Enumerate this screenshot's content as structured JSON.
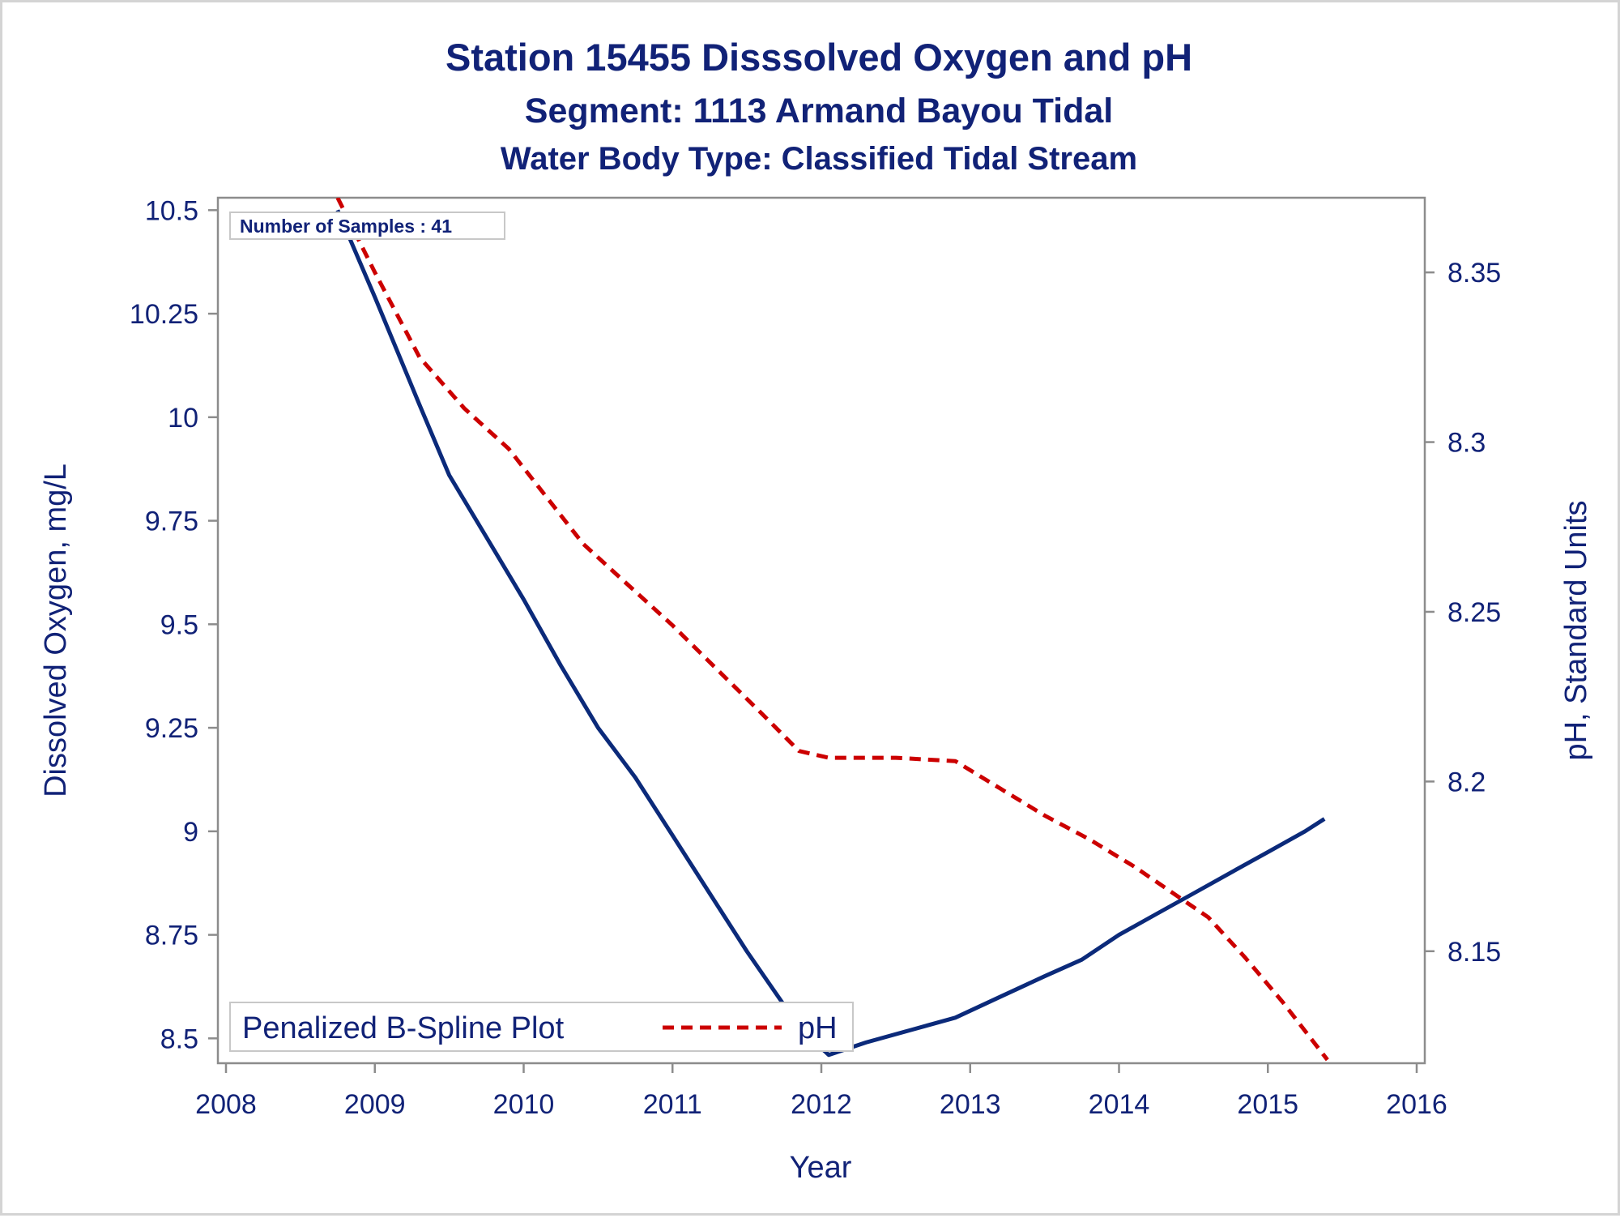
{
  "titles": {
    "main": "Station 15455   Disssolved Oxygen and pH",
    "segment": "Segment: 1113  Armand Bayou Tidal",
    "water_body": "Water Body Type: Classified Tidal Stream"
  },
  "inset_label": "Number of Samples : 41",
  "legend": {
    "left_label": "Penalized B-Spline Plot",
    "right_label": "pH"
  },
  "colors": {
    "text": "#112277",
    "do_line": "#0b2a7a",
    "ph_line": "#cc0000",
    "axis": "#8c8c8c"
  },
  "chart_data": {
    "type": "line",
    "xlabel": "Year",
    "ylabel_left": "Dissolved Oxygen, mg/L",
    "ylabel_right": "pH, Standard Units",
    "x_ticks": [
      2008,
      2009,
      2010,
      2011,
      2012,
      2013,
      2014,
      2015,
      2016
    ],
    "y_left_ticks": [
      "10.5",
      "10.25",
      "10",
      "9.75",
      "9.5",
      "9.25",
      "9",
      "8.75",
      "8.5"
    ],
    "y_right_ticks": [
      "8.35",
      "8.3",
      "8.25",
      "8.2",
      "8.15"
    ],
    "xlim": [
      2008,
      2016
    ],
    "ylim_left": [
      8.44,
      10.53
    ],
    "ylim_right": [
      8.117,
      8.372
    ],
    "grid": false,
    "legend_position": "bottom-left inside",
    "series": [
      {
        "name": "Dissolved Oxygen",
        "axis": "left",
        "style": "solid",
        "points": [
          [
            2008.75,
            10.5
          ],
          [
            2009.0,
            10.29
          ],
          [
            2009.3,
            10.03
          ],
          [
            2009.5,
            9.86
          ],
          [
            2009.75,
            9.71
          ],
          [
            2010.0,
            9.56
          ],
          [
            2010.25,
            9.4
          ],
          [
            2010.5,
            9.25
          ],
          [
            2010.75,
            9.13
          ],
          [
            2011.0,
            8.99
          ],
          [
            2011.25,
            8.85
          ],
          [
            2011.5,
            8.71
          ],
          [
            2011.75,
            8.58
          ],
          [
            2011.9,
            8.51
          ],
          [
            2012.05,
            8.46
          ],
          [
            2012.3,
            8.49
          ],
          [
            2012.6,
            8.52
          ],
          [
            2012.9,
            8.55
          ],
          [
            2013.2,
            8.6
          ],
          [
            2013.5,
            8.65
          ],
          [
            2013.75,
            8.69
          ],
          [
            2014.0,
            8.75
          ],
          [
            2014.25,
            8.8
          ],
          [
            2014.5,
            8.85
          ],
          [
            2014.75,
            8.9
          ],
          [
            2015.0,
            8.95
          ],
          [
            2015.25,
            9.0
          ],
          [
            2015.38,
            9.03
          ]
        ]
      },
      {
        "name": "pH",
        "axis": "right",
        "style": "dashed",
        "points": [
          [
            2008.75,
            8.372
          ],
          [
            2009.0,
            8.35
          ],
          [
            2009.3,
            8.325
          ],
          [
            2009.6,
            8.31
          ],
          [
            2009.9,
            8.298
          ],
          [
            2010.15,
            8.284
          ],
          [
            2010.4,
            8.27
          ],
          [
            2010.7,
            8.258
          ],
          [
            2011.0,
            8.246
          ],
          [
            2011.3,
            8.233
          ],
          [
            2011.6,
            8.22
          ],
          [
            2011.85,
            8.209
          ],
          [
            2012.05,
            8.207
          ],
          [
            2012.5,
            8.207
          ],
          [
            2012.9,
            8.206
          ],
          [
            2013.2,
            8.198
          ],
          [
            2013.5,
            8.19
          ],
          [
            2013.8,
            8.183
          ],
          [
            2014.1,
            8.175
          ],
          [
            2014.4,
            8.166
          ],
          [
            2014.6,
            8.16
          ],
          [
            2014.85,
            8.148
          ],
          [
            2015.1,
            8.135
          ],
          [
            2015.4,
            8.118
          ]
        ]
      }
    ]
  }
}
